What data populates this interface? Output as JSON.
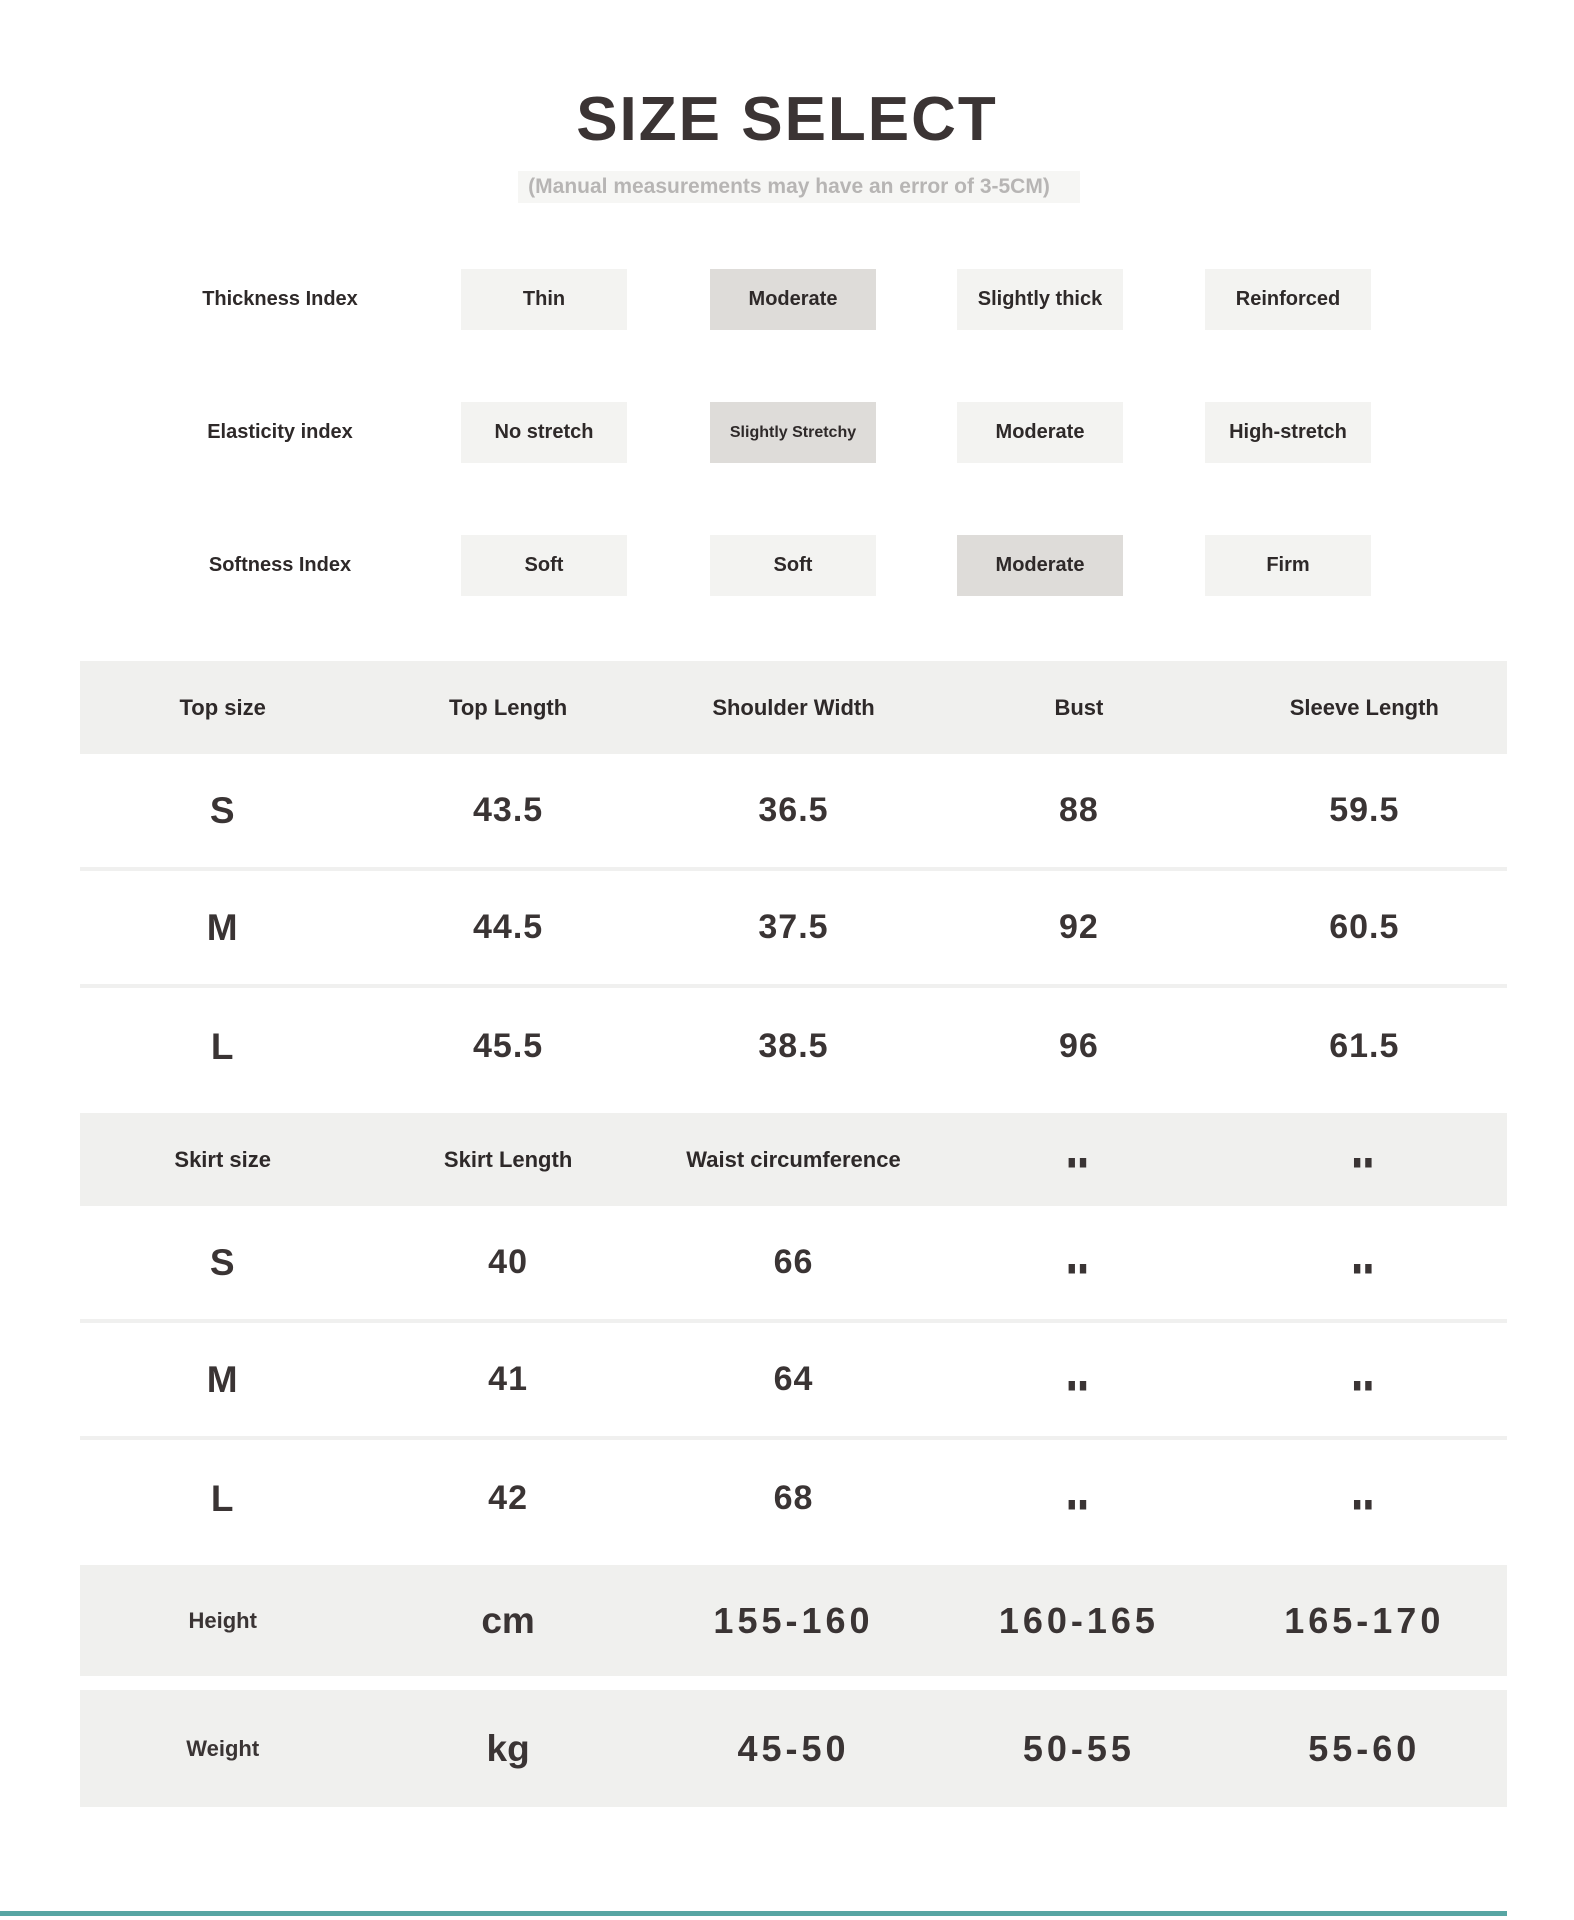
{
  "header": {
    "title": "SIZE SELECT",
    "subtitle": "(Manual measurements may have an error of 3-5CM)"
  },
  "colors": {
    "text_dark": "#3a3434",
    "subtitle_gray": "#b7b5b4",
    "box_idle": "#f3f3f1",
    "box_selected": "#dedcd9",
    "band_gray": "#f0f0ee",
    "accent_teal": "#57a5a3"
  },
  "indices": {
    "rows": [
      {
        "label": "Thickness Index",
        "options": [
          "Thin",
          "Moderate",
          "Slightly thick",
          "Reinforced"
        ],
        "selected": 1
      },
      {
        "label": "Elasticity index",
        "options": [
          "No stretch",
          "Slightly Stretchy",
          "Moderate",
          "High-stretch"
        ],
        "selected": 1
      },
      {
        "label": "Softness Index",
        "options": [
          "Soft",
          "Soft",
          "Moderate",
          "Firm"
        ],
        "selected": 2
      }
    ]
  },
  "tables": {
    "top": {
      "headers": [
        "Top size",
        "Top Length",
        "Shoulder Width",
        "Bust",
        "Sleeve Length"
      ],
      "rows": [
        [
          "S",
          "43.5",
          "36.5",
          "88",
          "59.5"
        ],
        [
          "M",
          "44.5",
          "37.5",
          "92",
          "60.5"
        ],
        [
          "L",
          "45.5",
          "38.5",
          "96",
          "61.5"
        ]
      ]
    },
    "skirt": {
      "headers": [
        "Skirt size",
        "Skirt Length",
        "Waist circumference",
        "--",
        "--"
      ],
      "rows": [
        [
          "S",
          "40",
          "66",
          "--",
          "--"
        ],
        [
          "M",
          "41",
          "64",
          "--",
          "--"
        ],
        [
          "L",
          "42",
          "68",
          "--",
          "--"
        ]
      ]
    },
    "body": {
      "rows": [
        [
          "Height",
          "cm",
          "155-160",
          "160-165",
          "165-170"
        ],
        [
          "Weight",
          "kg",
          "45-50",
          "50-55",
          "55-60"
        ]
      ]
    }
  }
}
